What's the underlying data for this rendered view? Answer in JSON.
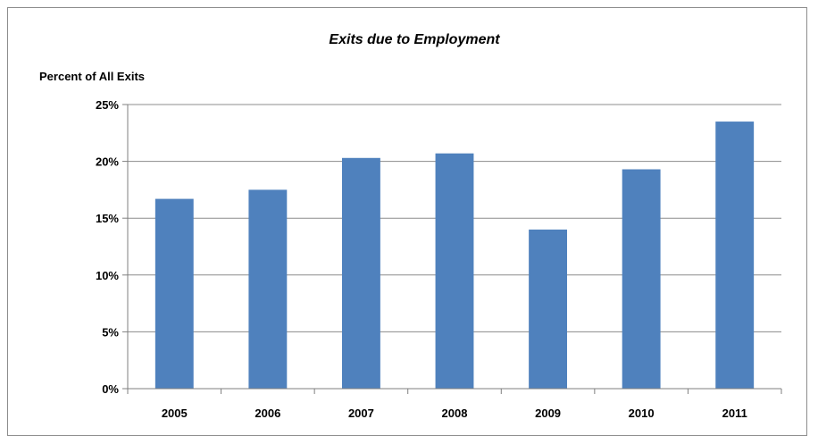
{
  "chart_data": {
    "type": "bar",
    "title": "Exits due to Employment",
    "ylabel": "Percent of All Exits",
    "xlabel": "",
    "categories": [
      "2005",
      "2006",
      "2007",
      "2008",
      "2009",
      "2010",
      "2011"
    ],
    "values": [
      16.7,
      17.5,
      20.3,
      20.7,
      14.0,
      19.3,
      23.5
    ],
    "ylim": [
      0,
      25
    ],
    "yticks": [
      0,
      5,
      10,
      15,
      20,
      25
    ],
    "ytick_labels": [
      "0%",
      "5%",
      "10%",
      "15%",
      "20%",
      "25%"
    ],
    "grid": true,
    "legend": "none",
    "colors": {
      "bar": "#4f81bd",
      "grid": "#8c8c8c"
    }
  }
}
